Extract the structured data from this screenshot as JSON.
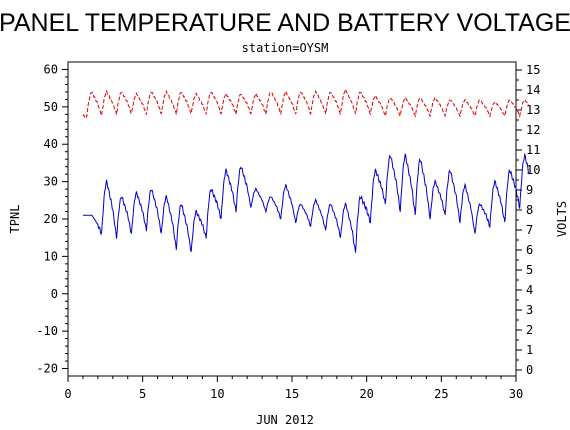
{
  "chart_data": {
    "type": "line",
    "title": "PANEL TEMPERATURE AND BATTERY VOLTAGE",
    "subtitle": "station=OYSM",
    "xlabel": "JUN 2012",
    "ylabel_left": "TPNL",
    "ylabel_right": "VOLTS",
    "xlim": [
      0,
      30
    ],
    "ylim_left": [
      -22,
      62
    ],
    "ylim_right": [
      -0.3,
      15.4
    ],
    "x_ticks": [
      0,
      5,
      10,
      15,
      20,
      25,
      30
    ],
    "y_ticks_left": [
      -20,
      -10,
      0,
      10,
      20,
      30,
      40,
      50,
      60
    ],
    "y_ticks_right": [
      0,
      1,
      2,
      3,
      4,
      5,
      6,
      7,
      8,
      9,
      10,
      11,
      12,
      13,
      14,
      15
    ],
    "grid": false,
    "series": [
      {
        "axis": "left",
        "color": "#0000cc",
        "style": "solid",
        "daily_min": [
          21,
          16,
          15,
          16,
          17,
          16,
          12,
          11,
          15,
          20,
          22,
          23,
          22,
          20,
          19,
          18,
          17,
          15,
          11,
          19,
          24,
          22,
          21,
          20,
          21,
          19,
          16,
          18,
          19,
          23
        ],
        "daily_max": [
          21,
          30,
          26,
          27,
          28,
          26,
          24,
          22,
          28,
          33,
          34,
          28,
          26,
          29,
          24,
          25,
          24,
          24,
          26,
          33,
          37,
          37,
          36,
          30,
          33,
          29,
          24,
          30,
          33,
          37
        ]
      },
      {
        "axis": "right",
        "color": "#dd0000",
        "style": "dashed",
        "daily_min": [
          12.7,
          12.7,
          12.8,
          12.8,
          12.8,
          12.8,
          12.8,
          12.8,
          12.8,
          12.8,
          12.8,
          12.8,
          12.8,
          12.8,
          12.8,
          12.8,
          12.8,
          12.8,
          12.8,
          12.8,
          12.7,
          12.7,
          12.7,
          12.7,
          12.7,
          12.7,
          12.7,
          12.7,
          12.7,
          12.7
        ],
        "daily_max": [
          13.9,
          13.9,
          13.9,
          13.8,
          13.9,
          13.9,
          13.9,
          13.8,
          13.9,
          13.8,
          13.8,
          13.8,
          13.9,
          13.9,
          13.9,
          13.9,
          13.9,
          14.0,
          13.9,
          13.7,
          13.6,
          13.6,
          13.6,
          13.6,
          13.5,
          13.5,
          13.5,
          13.4,
          13.5,
          13.5
        ]
      }
    ]
  }
}
